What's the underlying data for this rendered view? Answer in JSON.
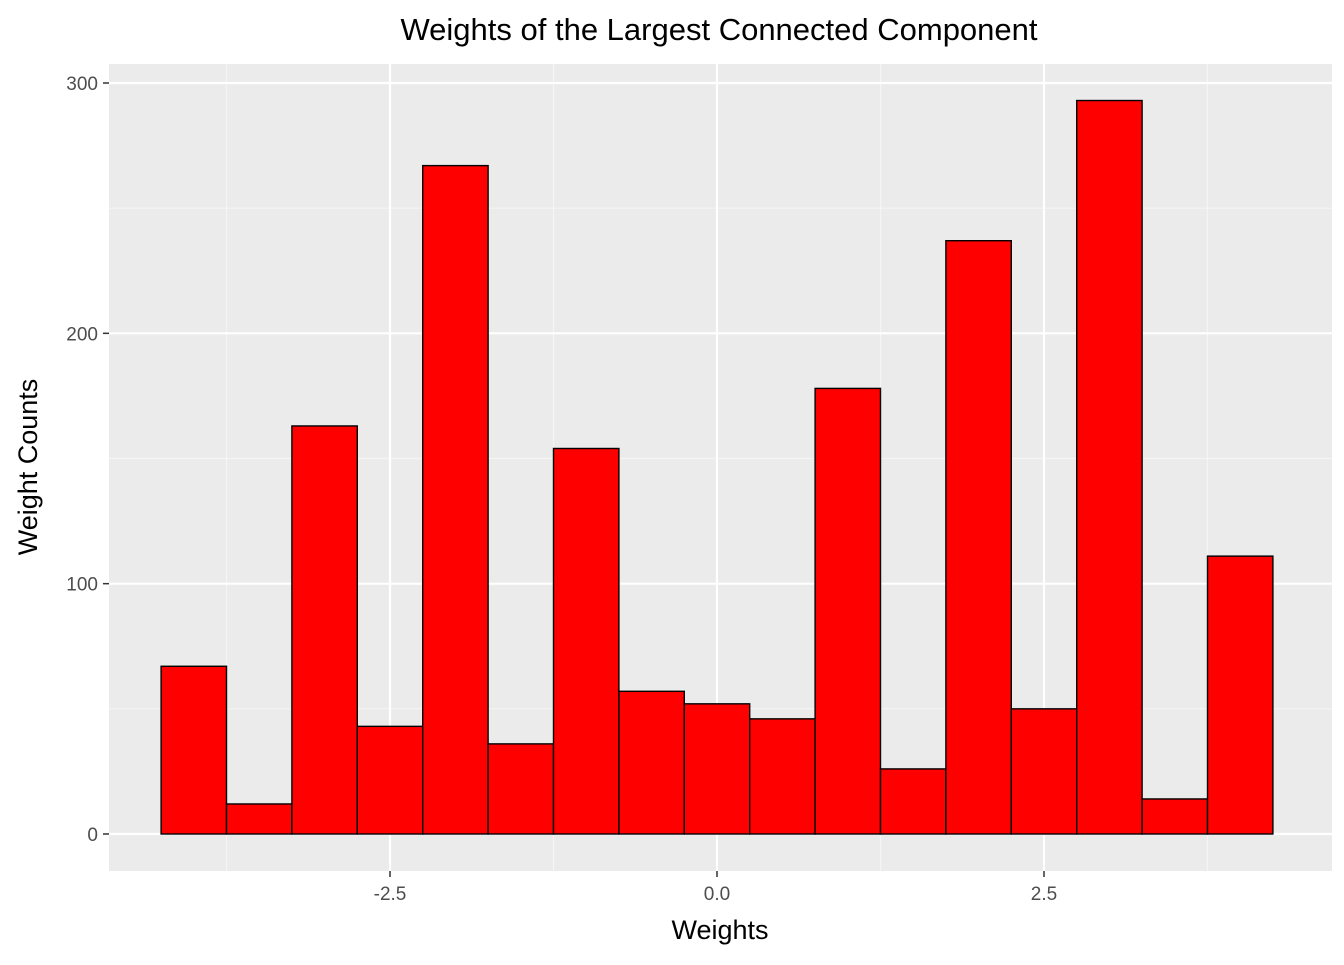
{
  "chart_data": {
    "type": "bar",
    "title": "Weights of the Largest Connected Component",
    "xlabel": "Weights",
    "ylabel": "Weight Counts",
    "bin_width": 0.5,
    "bins": [
      {
        "x": -4.0,
        "count": 67
      },
      {
        "x": -3.5,
        "count": 12
      },
      {
        "x": -3.0,
        "count": 163
      },
      {
        "x": -2.5,
        "count": 43
      },
      {
        "x": -2.0,
        "count": 267
      },
      {
        "x": -1.5,
        "count": 36
      },
      {
        "x": -1.0,
        "count": 154
      },
      {
        "x": -0.5,
        "count": 57
      },
      {
        "x": 0.0,
        "count": 52
      },
      {
        "x": 0.5,
        "count": 46
      },
      {
        "x": 1.0,
        "count": 178
      },
      {
        "x": 1.5,
        "count": 26
      },
      {
        "x": 2.0,
        "count": 237
      },
      {
        "x": 2.5,
        "count": 50
      },
      {
        "x": 3.0,
        "count": 293
      },
      {
        "x": 3.5,
        "count": 14
      },
      {
        "x": 4.0,
        "count": 111
      }
    ],
    "xlim": [
      -4.5,
      4.5
    ],
    "ylim": [
      0,
      300
    ],
    "x_ticks": [
      {
        "value": -2.5,
        "label": "-2.5"
      },
      {
        "value": 0.0,
        "label": "0.0"
      },
      {
        "value": 2.5,
        "label": "2.5"
      }
    ],
    "y_ticks": [
      {
        "value": 0,
        "label": "0"
      },
      {
        "value": 100,
        "label": "100"
      },
      {
        "value": 200,
        "label": "200"
      },
      {
        "value": 300,
        "label": "300"
      }
    ],
    "grid": true,
    "legend": false,
    "colors": {
      "bar_fill": "#ff0000",
      "bar_outline": "#000000",
      "panel_background": "#ebebeb",
      "grid_major": "#ffffff",
      "grid_minor": "#f5f5f5",
      "tick_label": "#4d4d4d",
      "tick_mark": "#333333"
    }
  }
}
